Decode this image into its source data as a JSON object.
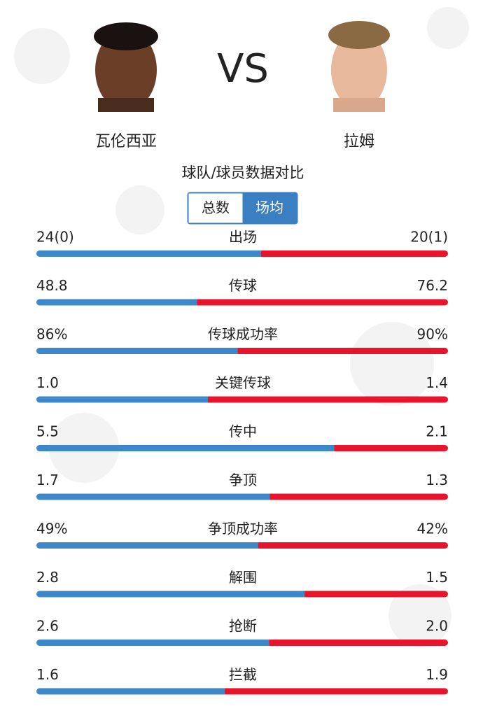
{
  "players": {
    "left": {
      "name": "瓦伦西亚"
    },
    "vs": "VS",
    "right": {
      "name": "拉姆"
    }
  },
  "subtitle": "球队/球员数据对比",
  "tabs": [
    {
      "label": "总数",
      "selected": false
    },
    {
      "label": "场均",
      "selected": true
    }
  ],
  "stats": {
    "left_color": "#3d88c8",
    "right_color": "#e8142c",
    "rows": [
      {
        "label": "出场",
        "left": 24,
        "left_label": "24(0)",
        "right": 20,
        "right_label": "20(1)"
      },
      {
        "label": "传球",
        "left": 48.8,
        "left_label": "48.8",
        "right": 76.2,
        "right_label": "76.2"
      },
      {
        "label": "传球成功率",
        "left": 86,
        "left_label": "86%",
        "right": 90,
        "right_label": "90%"
      },
      {
        "label": "关键传球",
        "left": 1,
        "left_label": "1.0",
        "right": 1.4,
        "right_label": "1.4"
      },
      {
        "label": "传中",
        "left": 5.5,
        "left_label": "5.5",
        "right": 2.1,
        "right_label": "2.1"
      },
      {
        "label": "争顶",
        "left": 1.7,
        "left_label": "1.7",
        "right": 1.3,
        "right_label": "1.3"
      },
      {
        "label": "争顶成功率",
        "left": 49,
        "left_label": "49%",
        "right": 42,
        "right_label": "42%"
      },
      {
        "label": "解围",
        "left": 2.8,
        "left_label": "2.8",
        "right": 1.5,
        "right_label": "1.5"
      },
      {
        "label": "抢断",
        "left": 2.6,
        "left_label": "2.6",
        "right": 2,
        "right_label": "2.0"
      },
      {
        "label": "拦截",
        "left": 1.6,
        "left_label": "1.6",
        "right": 1.9,
        "right_label": "1.9"
      }
    ]
  }
}
